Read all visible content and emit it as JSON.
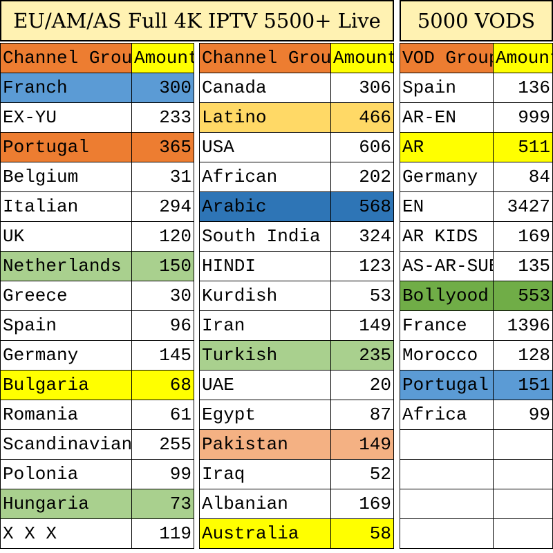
{
  "titles": {
    "live": "EU/AM/AS Full 4K IPTV 5500+ Live",
    "vods": "5000 VODS"
  },
  "headers": {
    "channel_group": "Channel Group",
    "vod_group": "VOD Group",
    "amount": "Amount"
  },
  "colors": {
    "title_bg": "#fff2b2",
    "header_name": "#ed7d31",
    "header_amount": "#ffff00"
  },
  "tables": [
    {
      "id": "t1",
      "header_key": "channel_group",
      "name_width": 190,
      "rows": [
        {
          "name": "Franch",
          "amount": "300",
          "bg": "#5b9bd5"
        },
        {
          "name": "EX-YU",
          "amount": "233",
          "bg": ""
        },
        {
          "name": "Portugal",
          "amount": "365",
          "bg": "#ed7d31"
        },
        {
          "name": "Belgium",
          "amount": "31",
          "bg": ""
        },
        {
          "name": "Italian",
          "amount": "294",
          "bg": ""
        },
        {
          "name": "UK",
          "amount": "120",
          "bg": ""
        },
        {
          "name": "Netherlands",
          "amount": "150",
          "bg": "#a9d08e"
        },
        {
          "name": "Greece",
          "amount": "30",
          "bg": ""
        },
        {
          "name": "Spain",
          "amount": "96",
          "bg": ""
        },
        {
          "name": "Germany",
          "amount": "145",
          "bg": ""
        },
        {
          "name": "Bulgaria",
          "amount": "68",
          "bg": "#ffff00"
        },
        {
          "name": "Romania",
          "amount": "61",
          "bg": ""
        },
        {
          "name": "Scandinavian",
          "amount": "255",
          "bg": ""
        },
        {
          "name": "Polonia",
          "amount": "99",
          "bg": ""
        },
        {
          "name": "Hungaria",
          "amount": "73",
          "bg": "#a9d08e"
        },
        {
          "name": "X X X",
          "amount": "119",
          "bg": ""
        }
      ]
    },
    {
      "id": "t2",
      "header_key": "channel_group",
      "name_width": 190,
      "rows": [
        {
          "name": "Canada",
          "amount": "306",
          "bg": ""
        },
        {
          "name": "Latino",
          "amount": "466",
          "bg": "#ffd966"
        },
        {
          "name": "USA",
          "amount": "606",
          "bg": ""
        },
        {
          "name": "African",
          "amount": "202",
          "bg": ""
        },
        {
          "name": "Arabic",
          "amount": "568",
          "bg": "#2e75b6"
        },
        {
          "name": "South India",
          "amount": "324",
          "bg": ""
        },
        {
          "name": "HINDI",
          "amount": "123",
          "bg": ""
        },
        {
          "name": "Kurdish",
          "amount": "53",
          "bg": ""
        },
        {
          "name": "Iran",
          "amount": "149",
          "bg": ""
        },
        {
          "name": "Turkish",
          "amount": "235",
          "bg": "#a9d08e"
        },
        {
          "name": "UAE",
          "amount": "20",
          "bg": ""
        },
        {
          "name": "Egypt",
          "amount": "87",
          "bg": ""
        },
        {
          "name": "Pakistan",
          "amount": "149",
          "bg": "#f4b183"
        },
        {
          "name": "Iraq",
          "amount": "52",
          "bg": ""
        },
        {
          "name": "Albanian",
          "amount": "169",
          "bg": ""
        },
        {
          "name": "Australia",
          "amount": "58",
          "bg": "#ffff00"
        }
      ]
    },
    {
      "id": "t3",
      "header_key": "vod_group",
      "name_width": 135,
      "rows": [
        {
          "name": "Spain",
          "amount": "136",
          "bg": ""
        },
        {
          "name": "AR-EN",
          "amount": "999",
          "bg": ""
        },
        {
          "name": "AR",
          "amount": "511",
          "bg": "#ffff00"
        },
        {
          "name": "Germany",
          "amount": "84",
          "bg": ""
        },
        {
          "name": "EN",
          "amount": "3427",
          "bg": ""
        },
        {
          "name": "AR KIDS",
          "amount": "169",
          "bg": ""
        },
        {
          "name": "AS-AR-SUB",
          "amount": "135",
          "bg": ""
        },
        {
          "name": "Bollyood",
          "amount": "553",
          "bg": "#70ad47"
        },
        {
          "name": "France",
          "amount": "1396",
          "bg": ""
        },
        {
          "name": "Morocco",
          "amount": "128",
          "bg": ""
        },
        {
          "name": "Portugal",
          "amount": "151",
          "bg": "#5b9bd5"
        },
        {
          "name": "Africa",
          "amount": "99",
          "bg": ""
        },
        {
          "name": "",
          "amount": "",
          "bg": ""
        },
        {
          "name": "",
          "amount": "",
          "bg": ""
        },
        {
          "name": "",
          "amount": "",
          "bg": ""
        },
        {
          "name": "",
          "amount": "",
          "bg": ""
        }
      ]
    }
  ]
}
